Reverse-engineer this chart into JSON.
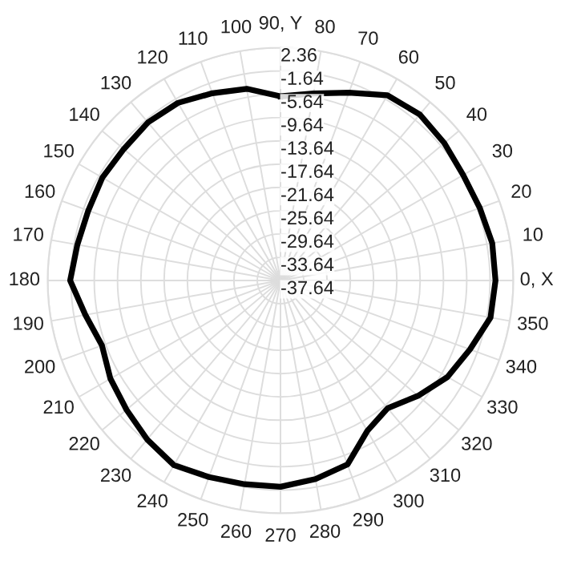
{
  "chart_data": {
    "type": "radar",
    "categories": [
      "90, Y",
      "80",
      "70",
      "60",
      "50",
      "40",
      "30",
      "20",
      "10",
      "0, X",
      "350",
      "340",
      "330",
      "320",
      "310",
      "300",
      "290",
      "280",
      "270",
      "260",
      "250",
      "240",
      "230",
      "220",
      "210",
      "200",
      "190",
      "180",
      "170",
      "160",
      "150",
      "140",
      "130",
      "120",
      "110",
      "100"
    ],
    "series": [
      {
        "color": "#000000",
        "values": [
          -6.0,
          -5.0,
          -3.3,
          -0.9,
          -0.4,
          -0.9,
          -1.4,
          -1.2,
          -0.7,
          -0.7,
          -1.0,
          -3.0,
          -4.5,
          -6.8,
          -9.0,
          -7.8,
          -4.0,
          -3.0,
          -2.2,
          -2.1,
          -1.7,
          -1.0,
          -2.0,
          -3.1,
          -3.9,
          -5.0,
          -3.6,
          -1.5,
          -2.2,
          -2.5,
          -2.3,
          -2.5,
          -2.2,
          -2.4,
          -3.4,
          -4.2
        ]
      }
    ],
    "ylim": [
      -37.64,
      2.36
    ],
    "yticks": [
      2.36,
      -1.64,
      -5.64,
      -9.64,
      -13.64,
      -17.64,
      -21.64,
      -25.64,
      -29.64,
      -33.64,
      -37.64
    ],
    "grid": true
  }
}
